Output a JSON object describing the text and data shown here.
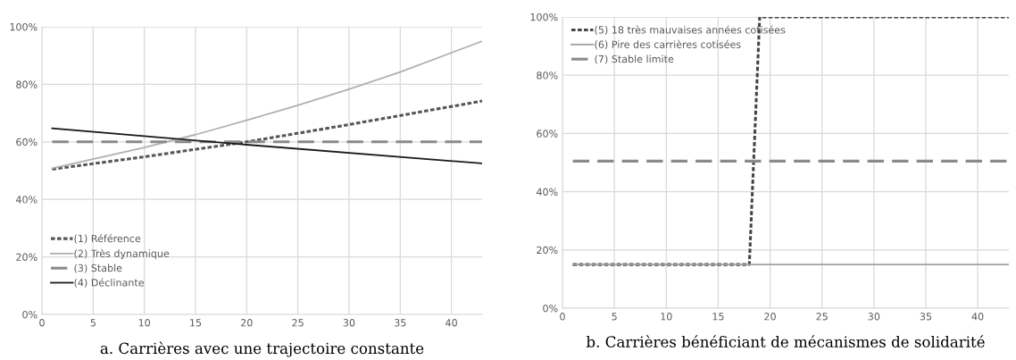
{
  "chart_data": [
    {
      "type": "line",
      "annotations": [
        "a. Carrières avec une trajectoire constante"
      ],
      "xlim": [
        0,
        43
      ],
      "xticks": [
        0,
        5,
        10,
        15,
        20,
        25,
        30,
        35,
        40
      ],
      "ylim": [
        0,
        100
      ],
      "yticks": [
        {
          "value": 0,
          "label": "0%"
        },
        {
          "value": 20,
          "label": "20%"
        },
        {
          "value": 40,
          "label": "40%"
        },
        {
          "value": 60,
          "label": "60%"
        },
        {
          "value": 80,
          "label": "80%"
        },
        {
          "value": 100,
          "label": "100%"
        }
      ],
      "grid": true,
      "legend": "bottom left",
      "series": [
        {
          "name": "(1) Référence",
          "color": "#555555",
          "line_style": "dotted",
          "x": [
            1,
            10,
            20,
            30,
            43
          ],
          "values": [
            50.5,
            54.8,
            60,
            66,
            74.2
          ]
        },
        {
          "name": "(2) Très dynamique",
          "color": "#b0b0b0",
          "line_style": "solid",
          "x": [
            1,
            10,
            15,
            20,
            25,
            30,
            35,
            43
          ],
          "values": [
            50.8,
            58,
            62.5,
            67.5,
            72.7,
            78.3,
            84.3,
            95
          ]
        },
        {
          "name": "(3) Stable",
          "color": "#8a8a8a",
          "line_style": "dashed",
          "x": [
            1,
            43
          ],
          "values": [
            60,
            60
          ]
        },
        {
          "name": "(4) Déclinante",
          "color": "#1a1a1a",
          "line_style": "solid",
          "x": [
            1,
            20,
            43
          ],
          "values": [
            64.7,
            59,
            52.5
          ]
        }
      ]
    },
    {
      "type": "line",
      "annotations": [
        "b. Carrières bénéficiant de mécanismes de solidarité"
      ],
      "xlim": [
        0,
        43
      ],
      "xticks": [
        0,
        5,
        10,
        15,
        20,
        25,
        30,
        35,
        40
      ],
      "ylim": [
        0,
        100
      ],
      "yticks": [
        {
          "value": 0,
          "label": "0%"
        },
        {
          "value": 20,
          "label": "20%"
        },
        {
          "value": 40,
          "label": "40%"
        },
        {
          "value": 60,
          "label": "60%"
        },
        {
          "value": 80,
          "label": "80%"
        },
        {
          "value": 100,
          "label": "100%"
        }
      ],
      "grid": true,
      "legend": "top left",
      "series": [
        {
          "name": "(5) 18 très mauvaises années cotisées",
          "color": "#444444",
          "line_style": "dotted",
          "x": [
            1,
            18,
            19,
            43
          ],
          "values": [
            15,
            15,
            100,
            100
          ]
        },
        {
          "name": "(6) Pire des carrières cotisées",
          "color": "#a0a0a0",
          "line_style": "solid",
          "x": [
            1,
            43
          ],
          "values": [
            15,
            15
          ]
        },
        {
          "name": "(7) Stable limite",
          "color": "#8a8a8a",
          "line_style": "dashed",
          "x": [
            1,
            43
          ],
          "values": [
            50.5,
            50.5
          ]
        }
      ]
    }
  ]
}
